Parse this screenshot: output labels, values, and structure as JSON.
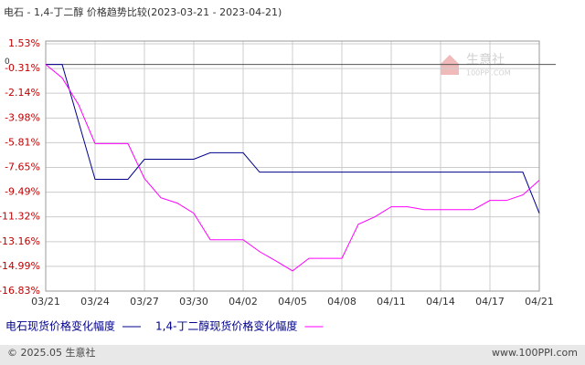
{
  "chart_data": {
    "type": "line",
    "title": "电石 - 1,4-丁二醇 价格趋势比较(2023-03-21 - 2023-04-21)",
    "categories": [
      "03/21",
      null,
      null,
      "03/24",
      null,
      null,
      "03/27",
      null,
      null,
      "03/30",
      null,
      null,
      "04/02",
      null,
      null,
      "04/05",
      null,
      null,
      "04/08",
      null,
      null,
      "04/11",
      null,
      null,
      "04/14",
      null,
      null,
      "04/17",
      null,
      null,
      "04/21"
    ],
    "series": [
      {
        "name": "电石现货价格变化幅度",
        "color": "#00008b",
        "values": [
          0,
          0,
          -4.27,
          -8.53,
          -8.53,
          -8.53,
          -7.04,
          -7.04,
          -7.04,
          -7.04,
          -6.56,
          -6.56,
          -6.56,
          -8.0,
          -8.0,
          -8.0,
          -8.0,
          -8.0,
          -8.0,
          -8.0,
          -8.0,
          -8.0,
          -8.0,
          -8.0,
          -8.0,
          -8.0,
          -8.0,
          -8.0,
          -8.0,
          -8.0,
          -11.05
        ]
      },
      {
        "name": "1,4-丁二醇现货价格变化幅度",
        "color": "#ff00ff",
        "values": [
          0,
          -1.0,
          -3.0,
          -5.88,
          -5.88,
          -5.88,
          -8.47,
          -9.9,
          -10.3,
          -11.05,
          -13.02,
          -13.02,
          -13.02,
          -13.9,
          -14.6,
          -15.33,
          -14.4,
          -14.4,
          -14.4,
          -11.87,
          -11.32,
          -10.57,
          -10.57,
          -10.78,
          -10.78,
          -10.78,
          -10.78,
          -10.1,
          -10.1,
          -9.69,
          -8.6
        ]
      }
    ],
    "ylim": [
      -16.83,
      1.53
    ],
    "yticks": [
      {
        "value": 1.53,
        "label": "1.53%"
      },
      {
        "value": -0.31,
        "label": "-0.31%"
      },
      {
        "value": -2.14,
        "label": "-2.14%"
      },
      {
        "value": -3.98,
        "label": "-3.98%"
      },
      {
        "value": -5.81,
        "label": "-5.81%"
      },
      {
        "value": -7.65,
        "label": "-7.65%"
      },
      {
        "value": -9.49,
        "label": "-9.49%"
      },
      {
        "value": -11.32,
        "label": "-11.32%"
      },
      {
        "value": -13.16,
        "label": "-13.16%"
      },
      {
        "value": -14.99,
        "label": "-14.99%"
      },
      {
        "value": -16.83,
        "label": "-16.83%"
      }
    ],
    "zero_line": {
      "value": 0,
      "label": "0"
    },
    "grid": true,
    "watermark": {
      "brand": "生意社",
      "site": "100PPI.COM"
    },
    "footer": {
      "left": "© 2025.05 生意社",
      "right": "www.100PPI.com"
    }
  }
}
